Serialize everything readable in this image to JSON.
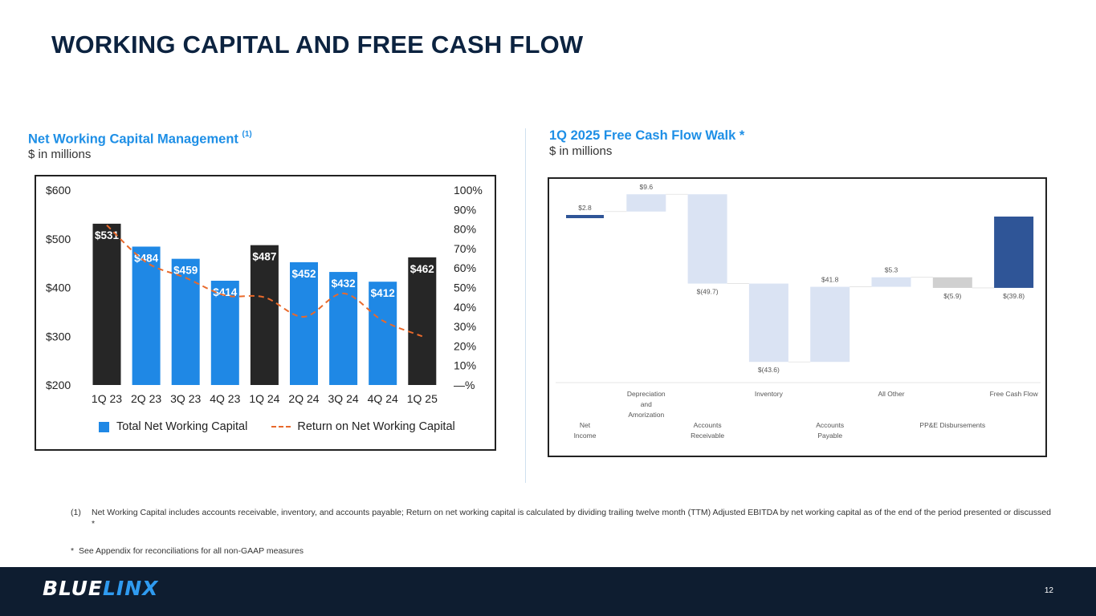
{
  "page": {
    "title": "WORKING CAPITAL AND FREE CASH FLOW",
    "page_number": "12",
    "logo": {
      "part1": "BLUE",
      "part2": "LINX"
    }
  },
  "left_section": {
    "title": "Net Working Capital Management",
    "title_sup": "(1)",
    "subtitle": "$ in millions"
  },
  "right_section": {
    "title": "1Q 2025 Free Cash Flow Walk *",
    "subtitle": "$ in millions"
  },
  "footnotes": {
    "note1_marker": "(1)",
    "note1_text": "Net Working Capital includes accounts receivable, inventory, and accounts payable; Return on net working capital is calculated by dividing trailing twelve month (TTM) Adjusted EBITDA by net working capital as of the end of the period presented or discussed *",
    "note2_marker": "*",
    "note2_text": "See Appendix for reconciliations for all non-GAAP measures"
  },
  "colors": {
    "dark_bar": "#262626",
    "blue_bar": "#1f88e5",
    "line": "#e8692b",
    "wf_light": "#dae3f3",
    "wf_dark": "#2f5597",
    "wf_gray": "#d0d0d0"
  },
  "chart_data": [
    {
      "type": "bar",
      "categories": [
        "1Q 23",
        "2Q 23",
        "3Q 23",
        "4Q 23",
        "1Q 24",
        "2Q 24",
        "3Q 24",
        "4Q 24",
        "1Q 25"
      ],
      "values": [
        531,
        484,
        459,
        414,
        487,
        452,
        432,
        412,
        462
      ],
      "value_labels": [
        "$531",
        "$484",
        "$459",
        "$414",
        "$487",
        "$452",
        "$432",
        "$412",
        "$462"
      ],
      "bar_styles": [
        "dark",
        "blue",
        "blue",
        "blue",
        "dark",
        "blue",
        "blue",
        "blue",
        "dark"
      ],
      "series": [
        {
          "name": "Total Net Working Capital",
          "axis": "left",
          "values": [
            531,
            484,
            459,
            414,
            487,
            452,
            432,
            412,
            462
          ]
        },
        {
          "name": "Return on Net Working Capital",
          "axis": "right",
          "type": "line",
          "values": [
            82,
            63,
            55,
            46,
            45,
            35,
            47,
            33,
            25
          ]
        }
      ],
      "ylim": [
        200,
        600
      ],
      "y_ticks": [
        "$200",
        "$300",
        "$400",
        "$500",
        "$600"
      ],
      "y2lim": [
        0,
        100
      ],
      "y2_ticks": [
        "—%",
        "10%",
        "20%",
        "30%",
        "40%",
        "50%",
        "60%",
        "70%",
        "80%",
        "90%",
        "100%"
      ],
      "legend": {
        "bar_label": "Total Net Working Capital",
        "line_label": "Return on Net Working Capital"
      },
      "title": "Net Working Capital Management"
    },
    {
      "type": "waterfall",
      "title": "1Q 2025 Free Cash Flow Walk",
      "steps": [
        {
          "label": "Net Income",
          "value": 2.8,
          "display": "$2.8",
          "kind": "total",
          "row": 2
        },
        {
          "label": "Depreciation and Amorization",
          "value": 9.6,
          "display": "$9.6",
          "kind": "delta",
          "row": 1
        },
        {
          "label": "Accounts Receivable",
          "value": -49.7,
          "display": "$(49.7)",
          "kind": "delta",
          "row": 2
        },
        {
          "label": "Inventory",
          "value": -43.6,
          "display": "$(43.6)",
          "kind": "delta",
          "row": 1
        },
        {
          "label": "Accounts Payable",
          "value": 41.8,
          "display": "$41.8",
          "kind": "delta",
          "row": 2
        },
        {
          "label": "All Other",
          "value": 5.3,
          "display": "$5.3",
          "kind": "delta",
          "row": 1
        },
        {
          "label": "PP&E Disbursements",
          "value": -5.9,
          "display": "$(5.9)",
          "kind": "delta-gray",
          "row": 2
        },
        {
          "label": "Free Cash Flow",
          "value": -39.8,
          "display": "$(39.8)",
          "kind": "total",
          "row": 1
        }
      ],
      "category_labels": [
        {
          "lines": [
            "Net",
            "Income"
          ],
          "row": 2
        },
        {
          "lines": [
            "Depreciation",
            "and",
            "Amorization"
          ],
          "row": 1
        },
        {
          "lines": [
            "Accounts",
            "Receivable"
          ],
          "row": 2
        },
        {
          "lines": [
            "Inventory"
          ],
          "row": 1
        },
        {
          "lines": [
            "Accounts",
            "Payable"
          ],
          "row": 2
        },
        {
          "lines": [
            "All Other"
          ],
          "row": 1
        },
        {
          "lines": [
            "PP&E Disbursements"
          ],
          "row": 2
        },
        {
          "lines": [
            "Free Cash Flow"
          ],
          "row": 1
        }
      ]
    }
  ]
}
